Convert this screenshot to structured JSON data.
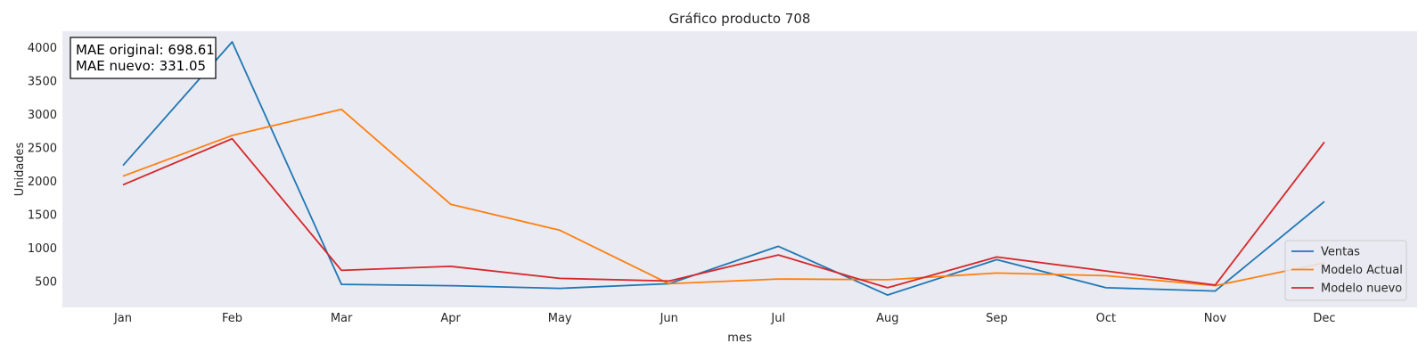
{
  "chart_data": {
    "type": "line",
    "title": "Gráfico producto 708",
    "xlabel": "mes",
    "ylabel": "Unidades",
    "categories": [
      "Jan",
      "Feb",
      "Mar",
      "Apr",
      "May",
      "Jun",
      "Jul",
      "Aug",
      "Sep",
      "Oct",
      "Nov",
      "Dec"
    ],
    "yticks": [
      500,
      1000,
      1500,
      2000,
      2500,
      3000,
      3500,
      4000
    ],
    "ylim": [
      115,
      4250
    ],
    "grid": false,
    "background": "#EAEAF2",
    "legend_position": "lower-right",
    "annotation": {
      "line1": "MAE original: 698.61",
      "line2": "MAE nuevo: 331.05"
    },
    "series": [
      {
        "name": "Ventas",
        "color": "#1f77b4",
        "values": [
          2240,
          4090,
          460,
          440,
          400,
          470,
          1030,
          300,
          830,
          410,
          360,
          1700
        ]
      },
      {
        "name": "Modelo Actual",
        "color": "#ff7f0e",
        "values": [
          2080,
          2690,
          3080,
          1660,
          1270,
          470,
          540,
          530,
          630,
          590,
          440,
          780
        ]
      },
      {
        "name": "Modelo nuevo",
        "color": "#d62728",
        "values": [
          1950,
          2640,
          670,
          730,
          550,
          510,
          900,
          410,
          870,
          660,
          450,
          2590
        ]
      }
    ]
  }
}
